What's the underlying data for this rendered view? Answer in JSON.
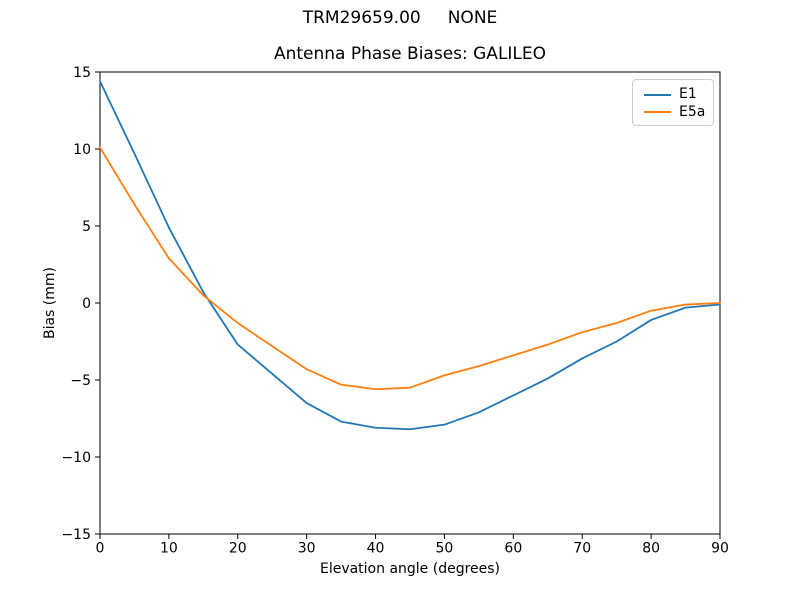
{
  "window": {
    "suptitle": "TRM29659.00     NONE"
  },
  "chart_data": {
    "type": "line",
    "title": "Antenna Phase Biases: GALILEO",
    "xlabel": "Elevation angle (degrees)",
    "ylabel": "Bias (mm)",
    "xlim": [
      0,
      90
    ],
    "ylim": [
      -15,
      15
    ],
    "xticks": [
      0,
      10,
      20,
      30,
      40,
      50,
      60,
      70,
      80,
      90
    ],
    "yticks": [
      -15,
      -10,
      -5,
      0,
      5,
      10,
      15
    ],
    "grid": false,
    "legend_position": "upper right",
    "x": [
      0,
      5,
      10,
      15,
      20,
      25,
      30,
      35,
      40,
      45,
      50,
      55,
      60,
      65,
      70,
      75,
      80,
      85,
      90
    ],
    "series": [
      {
        "name": "E1",
        "color": "#1f77b4",
        "values": [
          14.4,
          9.7,
          4.9,
          0.7,
          -2.7,
          -4.6,
          -6.5,
          -7.7,
          -8.1,
          -8.2,
          -7.9,
          -7.1,
          -6.0,
          -4.9,
          -3.6,
          -2.5,
          -1.1,
          -0.3,
          -0.1
        ]
      },
      {
        "name": "E5a",
        "color": "#ff7f0e",
        "values": [
          10.1,
          6.4,
          2.9,
          0.5,
          -1.3,
          -2.8,
          -4.3,
          -5.3,
          -5.6,
          -5.5,
          -4.7,
          -4.1,
          -3.4,
          -2.7,
          -1.9,
          -1.3,
          -0.5,
          -0.1,
          0.0
        ]
      }
    ]
  }
}
